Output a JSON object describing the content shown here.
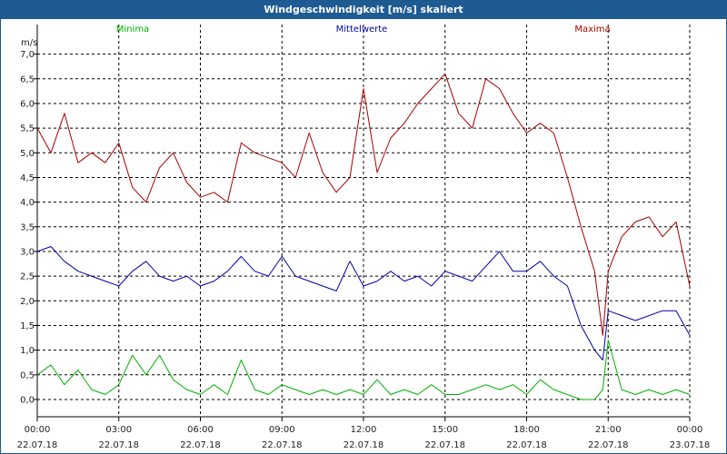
{
  "window": {
    "title": "Windgeschwindigkeit [m/s] skaliert"
  },
  "colors": {
    "minima": "#00b000",
    "mittel": "#0000a8",
    "maxima": "#a80000",
    "grid": "#000000",
    "title_bar": "#1f5b93"
  },
  "chart_data": {
    "type": "line",
    "title": "Windgeschwindigkeit [m/s] skaliert",
    "ylabel": "m/s",
    "ylim": [
      -0.35,
      7.6
    ],
    "yticks": [
      0.0,
      0.5,
      1.0,
      1.5,
      2.0,
      2.5,
      3.0,
      3.5,
      4.0,
      4.5,
      5.0,
      5.5,
      6.0,
      6.5,
      7.0
    ],
    "ytick_labels": [
      "0,0",
      "0,5",
      "1,0",
      "1,5",
      "2,0",
      "2,5",
      "3,0",
      "3,5",
      "4,0",
      "4,5",
      "5,0",
      "5,5",
      "6,0",
      "6,5",
      "7,0"
    ],
    "xlim": [
      0,
      24
    ],
    "xticks": [
      0,
      3,
      6,
      9,
      12,
      15,
      18,
      21,
      24
    ],
    "xtick_labels": [
      {
        "time": "00:00",
        "date": "22.07.18"
      },
      {
        "time": "03:00",
        "date": "22.07.18"
      },
      {
        "time": "06:00",
        "date": "22.07.18"
      },
      {
        "time": "09:00",
        "date": "22.07.18"
      },
      {
        "time": "12:00",
        "date": "22.07.18"
      },
      {
        "time": "15:00",
        "date": "22.07.18"
      },
      {
        "time": "18:00",
        "date": "22.07.18"
      },
      {
        "time": "21:00",
        "date": "22.07.18"
      },
      {
        "time": "00:00",
        "date": "23.07.18"
      }
    ],
    "grid": true,
    "legend_position": "top",
    "series": [
      {
        "key": "minima",
        "name": "Minima",
        "x": [
          0.0,
          0.5,
          1.0,
          1.5,
          2.0,
          2.5,
          3.0,
          3.5,
          4.0,
          4.5,
          5.0,
          5.5,
          6.0,
          6.5,
          7.0,
          7.5,
          8.0,
          8.5,
          9.0,
          9.5,
          10.0,
          10.5,
          11.0,
          11.5,
          12.0,
          12.5,
          13.0,
          13.5,
          14.0,
          14.5,
          15.0,
          15.5,
          16.0,
          16.5,
          17.0,
          17.5,
          18.0,
          18.5,
          19.0,
          19.5,
          20.0,
          20.5,
          20.8,
          21.0,
          21.5,
          22.0,
          22.5,
          23.0,
          23.5,
          24.0
        ],
        "values": [
          0.5,
          0.7,
          0.3,
          0.6,
          0.2,
          0.1,
          0.3,
          0.9,
          0.5,
          0.9,
          0.4,
          0.2,
          0.1,
          0.3,
          0.1,
          0.8,
          0.2,
          0.1,
          0.3,
          0.2,
          0.1,
          0.2,
          0.1,
          0.2,
          0.1,
          0.4,
          0.1,
          0.2,
          0.1,
          0.3,
          0.1,
          0.1,
          0.2,
          0.3,
          0.2,
          0.3,
          0.1,
          0.4,
          0.2,
          0.1,
          0.0,
          0.0,
          0.2,
          1.2,
          0.2,
          0.1,
          0.2,
          0.1,
          0.2,
          0.1
        ]
      },
      {
        "key": "mittel",
        "name": "Mittelwerte",
        "x": [
          0.0,
          0.5,
          1.0,
          1.5,
          2.0,
          2.5,
          3.0,
          3.5,
          4.0,
          4.5,
          5.0,
          5.5,
          6.0,
          6.5,
          7.0,
          7.5,
          8.0,
          8.5,
          9.0,
          9.5,
          10.0,
          10.5,
          11.0,
          11.5,
          12.0,
          12.5,
          13.0,
          13.5,
          14.0,
          14.5,
          15.0,
          15.5,
          16.0,
          16.5,
          17.0,
          17.5,
          18.0,
          18.5,
          19.0,
          19.5,
          20.0,
          20.5,
          20.8,
          21.0,
          21.5,
          22.0,
          22.5,
          23.0,
          23.5,
          24.0
        ],
        "values": [
          3.0,
          3.1,
          2.8,
          2.6,
          2.5,
          2.4,
          2.3,
          2.6,
          2.8,
          2.5,
          2.4,
          2.5,
          2.3,
          2.4,
          2.6,
          2.9,
          2.6,
          2.5,
          2.9,
          2.5,
          2.4,
          2.3,
          2.2,
          2.8,
          2.3,
          2.4,
          2.6,
          2.4,
          2.5,
          2.3,
          2.6,
          2.5,
          2.4,
          2.7,
          3.0,
          2.6,
          2.6,
          2.8,
          2.5,
          2.3,
          1.5,
          1.0,
          0.8,
          1.8,
          1.7,
          1.6,
          1.7,
          1.8,
          1.8,
          1.3
        ]
      },
      {
        "key": "maxima",
        "name": "Maxima",
        "x": [
          0.0,
          0.5,
          1.0,
          1.5,
          2.0,
          2.5,
          3.0,
          3.5,
          4.0,
          4.5,
          5.0,
          5.5,
          6.0,
          6.5,
          7.0,
          7.5,
          8.0,
          8.5,
          9.0,
          9.5,
          10.0,
          10.5,
          11.0,
          11.5,
          12.0,
          12.5,
          13.0,
          13.5,
          14.0,
          14.5,
          15.0,
          15.5,
          16.0,
          16.5,
          17.0,
          17.5,
          18.0,
          18.5,
          19.0,
          19.5,
          20.0,
          20.5,
          20.8,
          21.0,
          21.5,
          22.0,
          22.5,
          23.0,
          23.5,
          24.0
        ],
        "values": [
          5.5,
          5.0,
          5.8,
          4.8,
          5.0,
          4.8,
          5.2,
          4.3,
          4.0,
          4.7,
          5.0,
          4.4,
          4.1,
          4.2,
          4.0,
          5.2,
          5.0,
          4.9,
          4.8,
          4.5,
          5.4,
          4.6,
          4.2,
          4.5,
          6.3,
          4.6,
          5.3,
          5.6,
          6.0,
          6.3,
          6.6,
          5.8,
          5.5,
          6.5,
          6.3,
          5.8,
          5.4,
          5.6,
          5.4,
          4.5,
          3.5,
          2.6,
          1.3,
          2.6,
          3.3,
          3.6,
          3.7,
          3.3,
          3.6,
          2.3
        ]
      }
    ]
  }
}
